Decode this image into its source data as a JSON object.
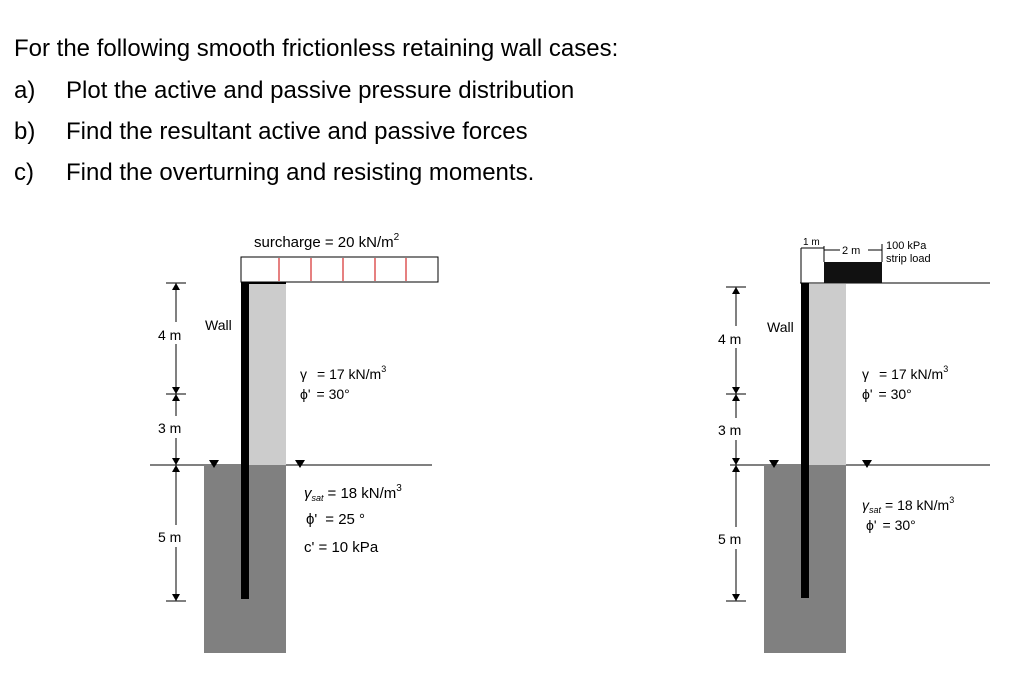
{
  "question": {
    "intro": "For the following smooth frictionless retaining wall cases:",
    "parts": [
      {
        "label": "a)",
        "text": "Plot the active and passive pressure distribution"
      },
      {
        "label": "b)",
        "text": "Find the resultant active and passive forces"
      },
      {
        "label": "c)",
        "text": "Find the overturning and resisting moments."
      }
    ]
  },
  "case1": {
    "surcharge_label": "surcharge = 20 kN/m",
    "surcharge_exp": "2",
    "wall_label": "Wall",
    "dims": [
      "4 m",
      "3 m",
      "5 m"
    ],
    "upper": {
      "gamma_sym": "γ",
      "gamma_val": "= 17 kN/m",
      "gamma_exp": "3",
      "phi_sym": "ϕ'",
      "phi_val": "= 30°"
    },
    "lower": {
      "gsat_sym": "γ",
      "gsat_sub": "sat",
      "gsat_val": "= 18 kN/m",
      "gsat_exp": "3",
      "phi_sym": "ϕ'",
      "phi_val": "= 25 °",
      "c_text": "c' = 10 kPa"
    }
  },
  "case2": {
    "dim_1m": "1 m",
    "dim_2m": "2 m",
    "strip_line1": "100 kPa",
    "strip_line2": "strip load",
    "wall_label": "Wall",
    "dims": [
      "4 m",
      "3 m",
      "5 m"
    ],
    "upper": {
      "gamma_sym": "γ",
      "gamma_val": "= 17 kN/m",
      "gamma_exp": "3",
      "phi_sym": "ϕ'",
      "phi_val": "= 30°"
    },
    "lower": {
      "gsat_sym": "γ",
      "gsat_sub": "sat",
      "gsat_val": "= 18 kN/m",
      "gsat_exp": "3",
      "phi_sym": "ϕ'",
      "phi_val": "= 30°"
    }
  },
  "colors": {
    "soil_light": "#cccccc",
    "soil_dark": "#808080",
    "wall": "#000000",
    "surcharge_lines": "#cc0000"
  }
}
